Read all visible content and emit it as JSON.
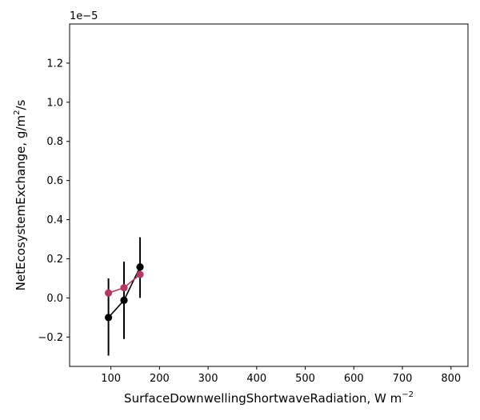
{
  "chart_data": {
    "type": "scatter",
    "title": "",
    "xlabel": "SurfaceDownwellingShortwaveRadiation,  W m",
    "xlabel_sup": "−2",
    "ylabel": "NetEcosystemExchange,  g/m",
    "ylabel_sup": "2",
    "ylabel_tail": "/s",
    "y_scale_label": "1e−5",
    "xlim": [
      15,
      835
    ],
    "ylim": [
      -0.35,
      1.4
    ],
    "x_ticks": [
      100,
      200,
      300,
      400,
      500,
      600,
      700,
      800
    ],
    "x_tick_labels": [
      "100",
      "200",
      "300",
      "400",
      "500",
      "600",
      "700",
      "800"
    ],
    "y_ticks": [
      -0.2,
      0.0,
      0.2,
      0.4,
      0.6,
      0.8,
      1.0,
      1.2
    ],
    "y_tick_labels": [
      "−0.2",
      "0.0",
      "0.2",
      "0.4",
      "0.6",
      "0.8",
      "1.0",
      "1.2"
    ],
    "grid": false,
    "series": [
      {
        "color": "#000000",
        "marker": "circle",
        "connected": true,
        "x": [
          95,
          127,
          160
        ],
        "y": [
          -0.1,
          -0.012,
          0.158
        ],
        "err_low": [
          -0.295,
          -0.21,
          0.0
        ],
        "err_high": [
          0.1,
          0.185,
          0.31
        ]
      },
      {
        "color": "#b5395f",
        "marker": "circle",
        "connected": true,
        "x": [
          95,
          127,
          160
        ],
        "y": [
          0.025,
          0.052,
          0.12
        ],
        "err_low": [
          0.025,
          0.052,
          0.12
        ],
        "err_high": [
          0.025,
          0.052,
          0.12
        ]
      }
    ]
  }
}
